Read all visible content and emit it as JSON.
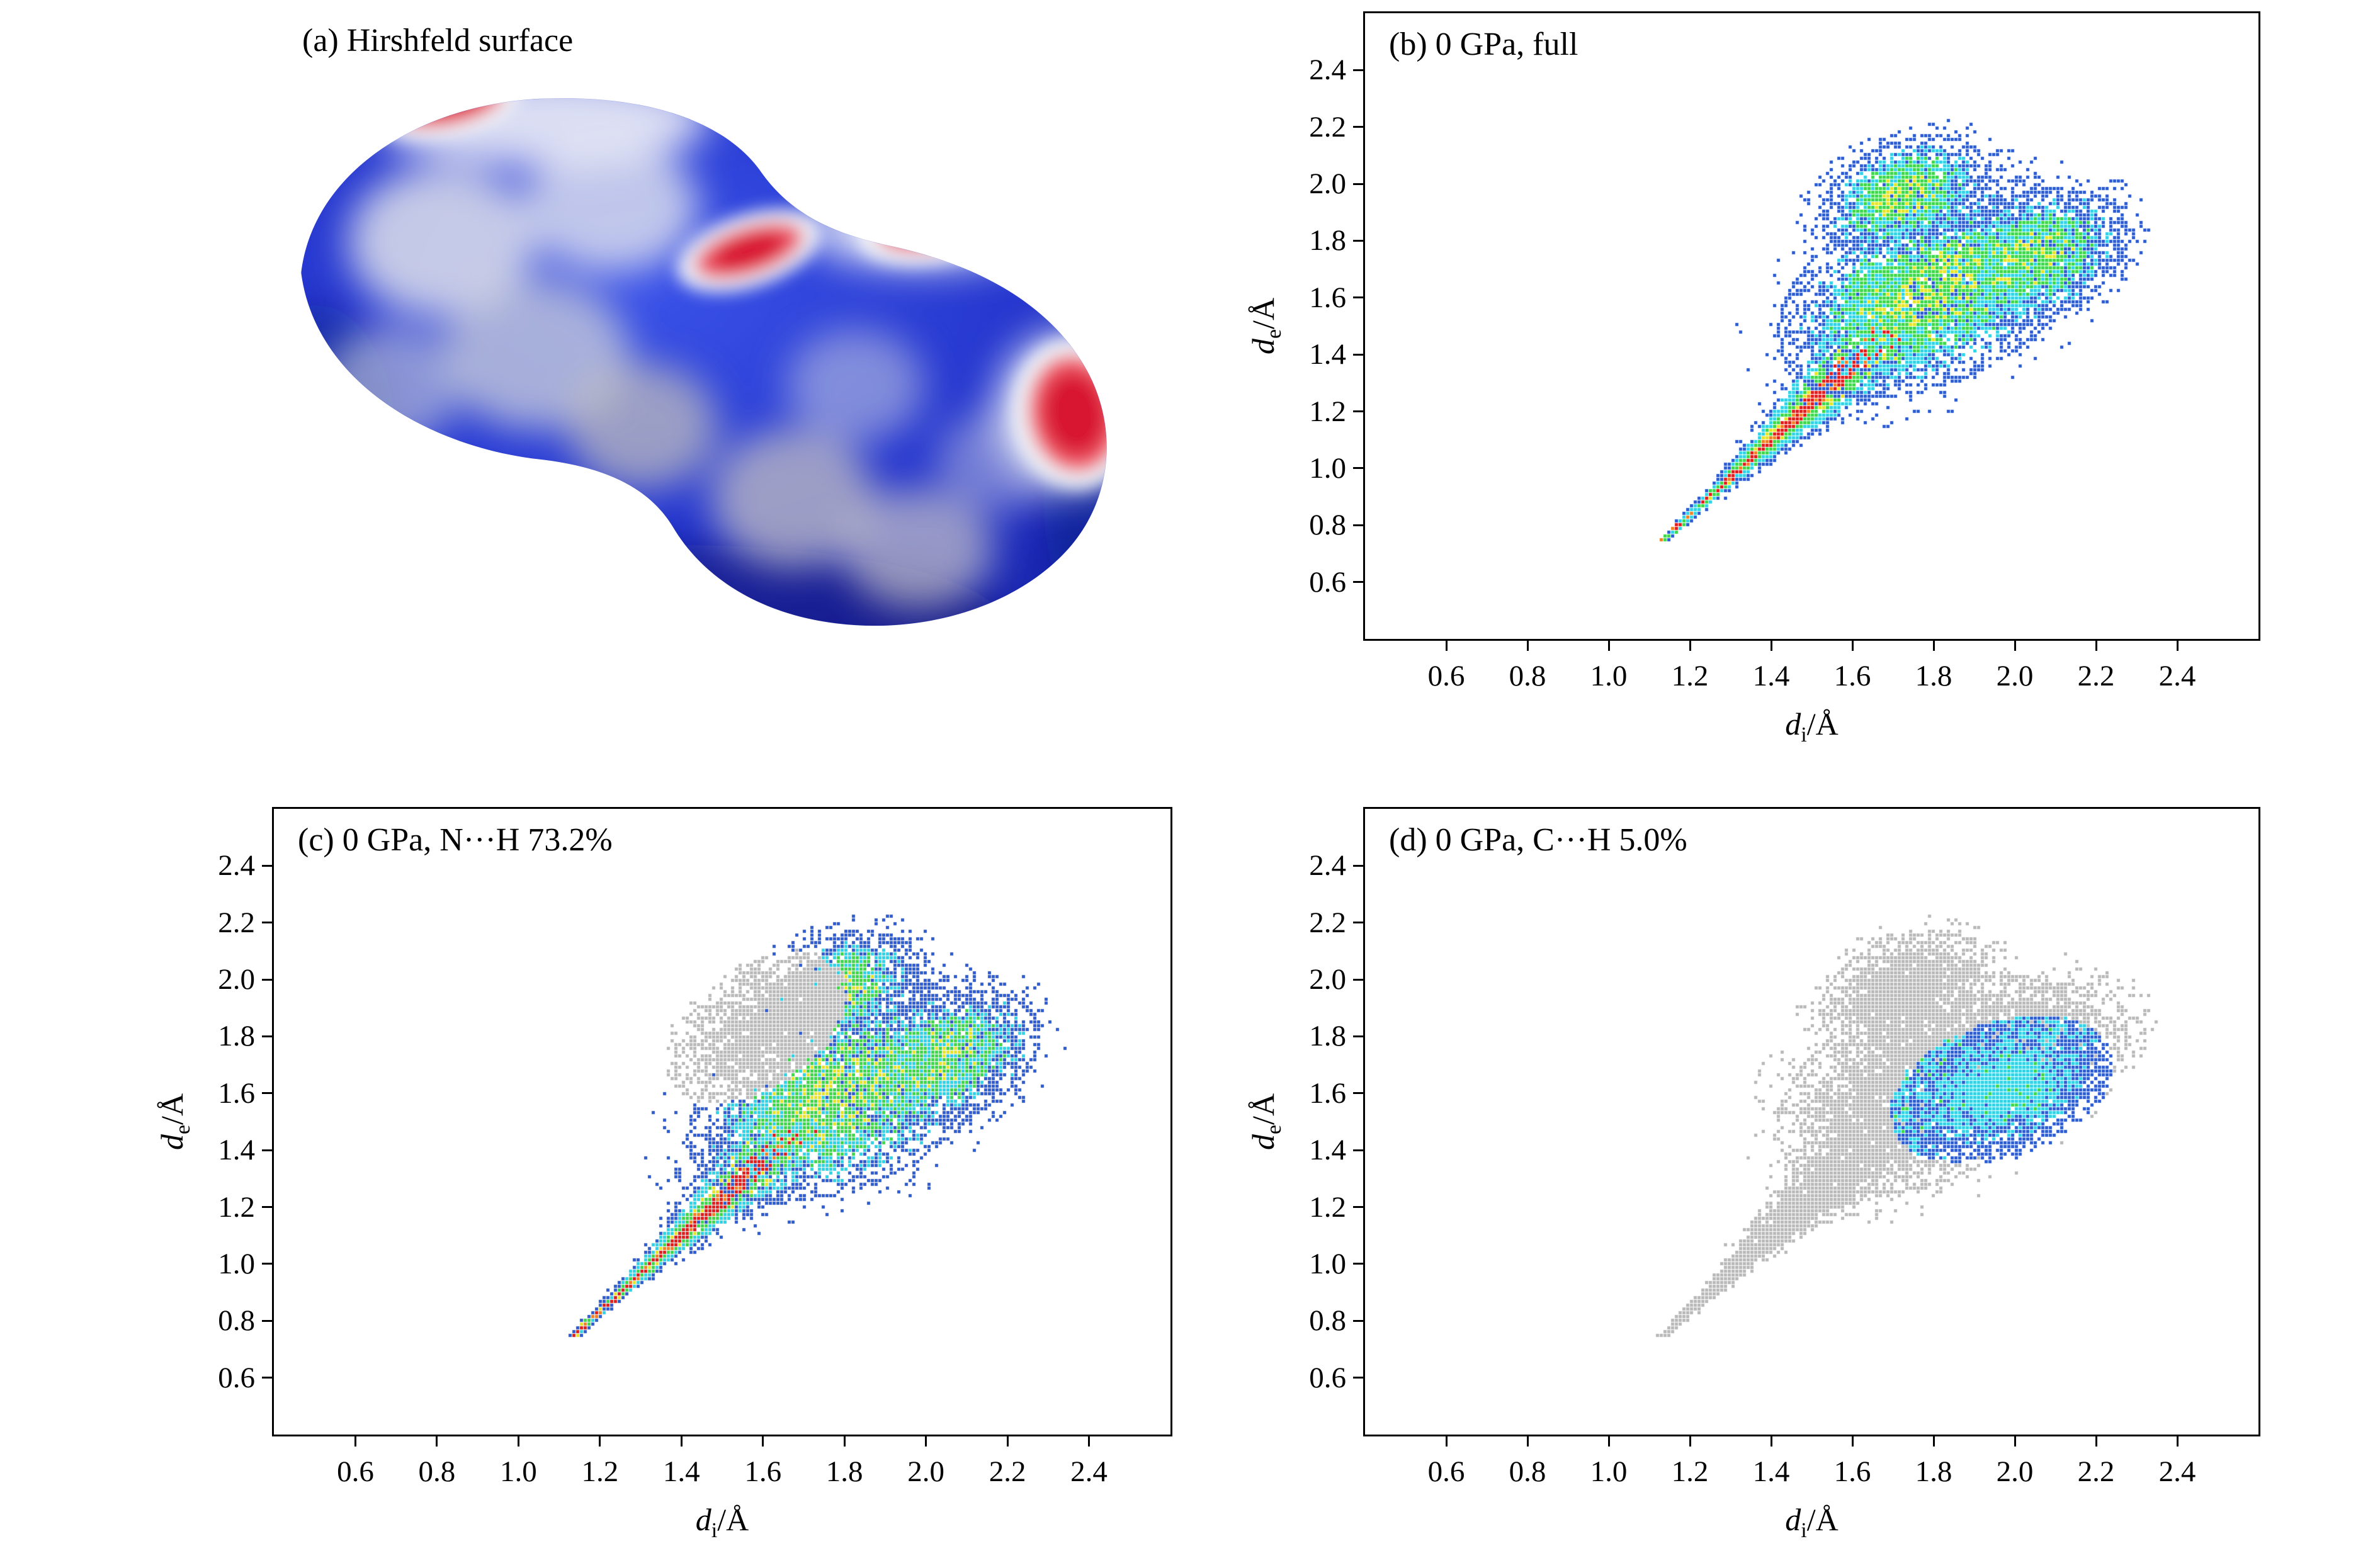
{
  "panels": [
    {
      "id": "a",
      "label": "(a) Hirshfeld surface"
    },
    {
      "id": "b",
      "label": "(b) 0 GPa, full"
    },
    {
      "id": "c",
      "label": "(c) 0 GPa, N···H 73.2%"
    },
    {
      "id": "d",
      "label": "(d) 0 GPa, C···H 5.0%"
    }
  ],
  "axes": {
    "x": {
      "var": "d",
      "sub": "i",
      "unit": "/Å"
    },
    "y": {
      "var": "d",
      "sub": "e",
      "unit": "/Å"
    },
    "ticks": [
      "0.6",
      "0.8",
      "1.0",
      "1.2",
      "1.4",
      "1.6",
      "1.8",
      "2.0",
      "2.2",
      "2.4"
    ],
    "range": [
      0.4,
      2.6
    ]
  },
  "colors": {
    "blue": "#2d5cd0",
    "cyan": "#2fd3e6",
    "green": "#3cd84a",
    "yellow": "#e6e428",
    "orange": "#f08020",
    "red": "#e01c1c",
    "gray": "#b9b9b9",
    "surface_blue": "#2233cc",
    "surface_red": "#e01c38"
  },
  "chart_data": [
    {
      "panel": "a",
      "type": "3d-surface",
      "title": "Hirshfeld surface",
      "description": "Blue molecular Hirshfeld surface with white/gray flat patches and red close-contact spots"
    },
    {
      "panel": "b",
      "type": "fingerprint",
      "title": "0 GPa, full",
      "xlabel": "di/Å",
      "ylabel": "de/Å",
      "xlim": [
        0.4,
        2.6
      ],
      "ylim": [
        0.4,
        2.6
      ],
      "mode": "full",
      "seed": 7,
      "spike": {
        "start": [
          1.13,
          0.74
        ],
        "end": [
          1.72,
          1.52
        ]
      },
      "blobs": [
        {
          "cx": 1.8,
          "cy": 1.63,
          "a": 0.46,
          "b": 0.3,
          "rot": 45,
          "w": 0.5
        },
        {
          "cx": 1.73,
          "cy": 1.96,
          "a": 0.24,
          "b": 0.17,
          "rot": 45,
          "w": 0.22
        },
        {
          "cx": 2.04,
          "cy": 1.74,
          "a": 0.28,
          "b": 0.2,
          "rot": 45,
          "w": 0.28
        }
      ]
    },
    {
      "panel": "c",
      "type": "fingerprint",
      "title": "0 GPa, N···H 73.2%",
      "percent": 73.2,
      "xlabel": "di/Å",
      "ylabel": "de/Å",
      "xlim": [
        0.4,
        2.6
      ],
      "ylim": [
        0.4,
        2.6
      ],
      "mode": "color-with-gray",
      "seed": 13,
      "spike": {
        "start": [
          1.13,
          0.74
        ],
        "end": [
          1.72,
          1.52
        ]
      },
      "blobs": [
        {
          "cx": 1.8,
          "cy": 1.6,
          "a": 0.46,
          "b": 0.3,
          "rot": 45,
          "w": 0.5
        },
        {
          "cx": 1.78,
          "cy": 1.96,
          "a": 0.24,
          "b": 0.17,
          "rot": 45,
          "w": 0.22
        },
        {
          "cx": 2.04,
          "cy": 1.72,
          "a": 0.28,
          "b": 0.2,
          "rot": 45,
          "w": 0.28
        }
      ],
      "gray_region": [
        {
          "cx": 1.58,
          "cy": 1.83,
          "a": 0.3,
          "b": 0.18,
          "rot": 55
        }
      ]
    },
    {
      "panel": "d",
      "type": "fingerprint",
      "title": "0 GPa, C···H 5.0%",
      "percent": 5.0,
      "xlabel": "di/Å",
      "ylabel": "de/Å",
      "xlim": [
        0.4,
        2.6
      ],
      "ylim": [
        0.4,
        2.6
      ],
      "mode": "gray-with-color",
      "seed": 21,
      "spike": {
        "start": [
          1.13,
          0.74
        ],
        "end": [
          1.72,
          1.52
        ]
      },
      "blobs": [
        {
          "cx": 1.8,
          "cy": 1.63,
          "a": 0.46,
          "b": 0.3,
          "rot": 45,
          "w": 0.5
        },
        {
          "cx": 1.73,
          "cy": 1.96,
          "a": 0.24,
          "b": 0.17,
          "rot": 45,
          "w": 0.22
        },
        {
          "cx": 2.04,
          "cy": 1.74,
          "a": 0.28,
          "b": 0.2,
          "rot": 45,
          "w": 0.28
        }
      ],
      "color_region": {
        "cx": 1.97,
        "cy": 1.61,
        "a": 0.31,
        "b": 0.22,
        "rot": 40
      }
    }
  ]
}
